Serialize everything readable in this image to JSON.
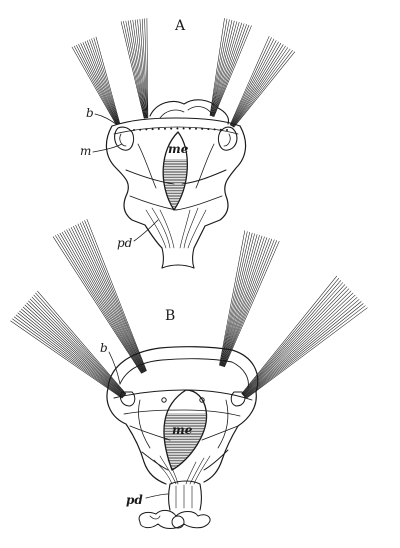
{
  "figures": {
    "a": {
      "title": "A",
      "labels": {
        "b": "b",
        "m": "m",
        "me": "me",
        "pd": "pd"
      }
    },
    "b": {
      "title": "B",
      "labels": {
        "b": "b",
        "me": "me",
        "pd": "pd"
      }
    }
  }
}
